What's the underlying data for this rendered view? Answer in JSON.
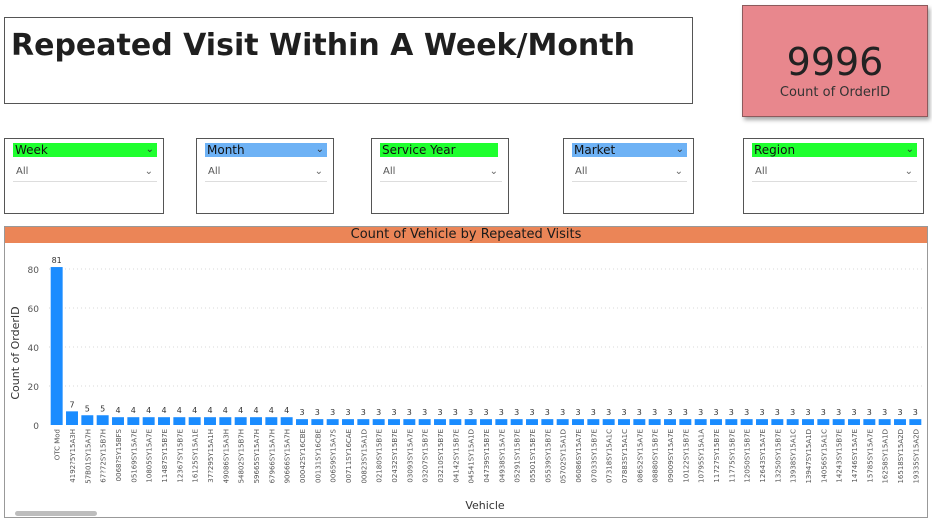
{
  "title": "Repeated Visit Within A Week/Month",
  "kpi": {
    "value": "9996",
    "label": "Count of OrderID",
    "color": "#e8878d"
  },
  "slicers": [
    {
      "label": "Week",
      "value": "All",
      "header_color": "#1fff2f"
    },
    {
      "label": "Month",
      "value": "All",
      "header_color": "#6eb2f5"
    },
    {
      "label": "Service Year",
      "value": "All",
      "header_color": "#1fff2f"
    },
    {
      "label": "Market",
      "value": "All",
      "header_color": "#6eb2f5"
    },
    {
      "label": "Region",
      "value": "All",
      "header_color": "#1fff2f"
    }
  ],
  "chart_data": {
    "type": "bar",
    "title": "Count of Vehicle by Repeated Visits",
    "xlabel": "Vehicle",
    "ylabel": "Count of OrderID",
    "ylim": [
      0,
      80
    ],
    "yticks": [
      0,
      20,
      40,
      60,
      80
    ],
    "grid": true,
    "bar_color": "#1a8cff",
    "title_color": "#eb8557",
    "categories": [
      "OTC Mod",
      "4192?5Y15A3H",
      "57B01SY15A7H",
      "67?72SY15B7H",
      "0068?SY15BFS",
      "05169SY15A7E",
      "10805SY15A7E",
      "11487SY15B7E",
      "12367SY15B7E",
      "16125SY15A1E",
      "37?295Y15A1H",
      "49086SY15A3H",
      "54802SY15B7H",
      "59665SY15A7H",
      "67966SY15A7H",
      "90666SY15A7H",
      "00042SY16CBE",
      "00131SY16CBE",
      "00659SY15A7S",
      "00711SY16CAE",
      "00823SY15A1D",
      "02180SY15B7E",
      "02432SY15B7E",
      "03093SY15A7E",
      "03207SY15B7E",
      "03210SY15B7E",
      "04142SY15B7E",
      "04541SY15A1D",
      "04739SY15B7E",
      "04938SY15A7E",
      "05291SY15B7E",
      "05501SY15B7E",
      "05539SY15B7E",
      "05702SY15A1D",
      "06086SY15A7E",
      "07033SY15B7E",
      "07318SY15A1C",
      "07883SY15A1C",
      "08652SY15A7E",
      "08880SY15B7E",
      "09009SY15A7E",
      "10122SY15B7E",
      "10795SY15A1A",
      "11727SY15B7E",
      "11775SY15B7E",
      "12050SY15B7E",
      "12643SY15A7E",
      "13250SY15B7E",
      "13938SY15A1C",
      "13947SY15A1D",
      "14056SY15A1C",
      "14243SY15B7E",
      "14746SY15A7E",
      "15785SY15A7E",
      "16258SY15A1D",
      "16518SY15A2D",
      "19335SY15A2D"
    ],
    "values": [
      81,
      7,
      5,
      5,
      4,
      4,
      4,
      4,
      4,
      4,
      4,
      4,
      4,
      4,
      4,
      4,
      3,
      3,
      3,
      3,
      3,
      3,
      3,
      3,
      3,
      3,
      3,
      3,
      3,
      3,
      3,
      3,
      3,
      3,
      3,
      3,
      3,
      3,
      3,
      3,
      3,
      3,
      3,
      3,
      3,
      3,
      3,
      3,
      3,
      3,
      3,
      3,
      3,
      3,
      3,
      3,
      3
    ]
  }
}
